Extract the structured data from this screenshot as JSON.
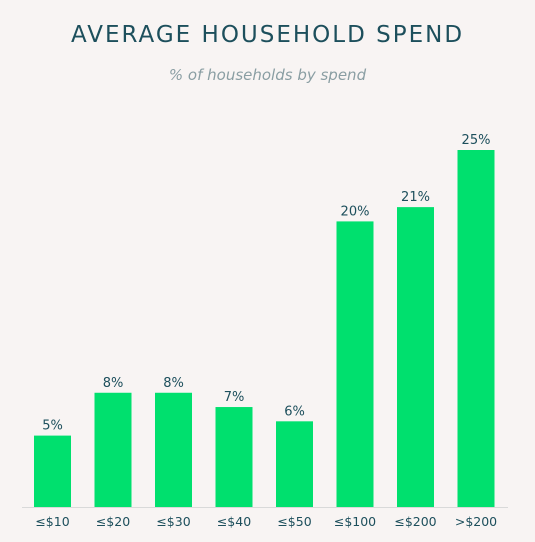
{
  "chart_data": {
    "type": "bar",
    "title": "AVERAGE HOUSEHOLD SPEND",
    "subtitle": "% of households by spend",
    "categories": [
      "≤$10",
      "≤$20",
      "≤$30",
      "≤$40",
      "≤$50",
      "≤$100",
      "≤$200",
      ">$200"
    ],
    "values": [
      5,
      8,
      8,
      7,
      6,
      20,
      21,
      25
    ],
    "value_labels": [
      "5%",
      "8%",
      "8%",
      "7%",
      "6%",
      "20%",
      "21%",
      "25%"
    ],
    "xlabel": "",
    "ylabel": "",
    "ylim": [
      0,
      25
    ],
    "grid": false,
    "bar_color": "#00e06e",
    "text_color": "#1d4f5c",
    "baseline_color": "#d9d9d9"
  }
}
